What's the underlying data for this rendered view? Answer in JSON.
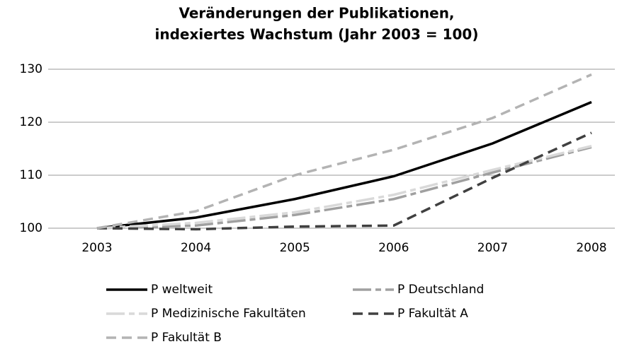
{
  "chart_data": {
    "type": "line",
    "title": [
      "Veränderungen der Publikationen,",
      "indexiertes Wachstum (Jahr 2003 = 100)"
    ],
    "categories": [
      "2003",
      "2004",
      "2005",
      "2006",
      "2007",
      "2008"
    ],
    "series": [
      {
        "name": "P weltweit",
        "color": "#000000",
        "dash": "none",
        "values": [
          100,
          102,
          105.5,
          109.8,
          116,
          123.8
        ]
      },
      {
        "name": "P Deutschland",
        "color": "#a0a0a0",
        "dash": "26 6 8 6",
        "values": [
          100,
          100.5,
          102.5,
          105.5,
          110.5,
          115.3
        ]
      },
      {
        "name": "P Medizinische Fakultäten",
        "color": "#d9d9d9",
        "dash": "26 6 8 6",
        "values": [
          100,
          101,
          103,
          106.3,
          111,
          115.5
        ]
      },
      {
        "name": "P Fakultät A",
        "color": "#404040",
        "dash": "14 8",
        "values": [
          100,
          99.8,
          100.3,
          100.5,
          109.5,
          118
        ]
      },
      {
        "name": "P Fakultät B",
        "color": "#b3b3b3",
        "dash": "14 8",
        "values": [
          100,
          103.2,
          110,
          114.8,
          120.8,
          129
        ]
      }
    ],
    "ylim": [
      100,
      130
    ],
    "yticks": [
      100,
      110,
      120,
      130
    ],
    "grid": true
  }
}
